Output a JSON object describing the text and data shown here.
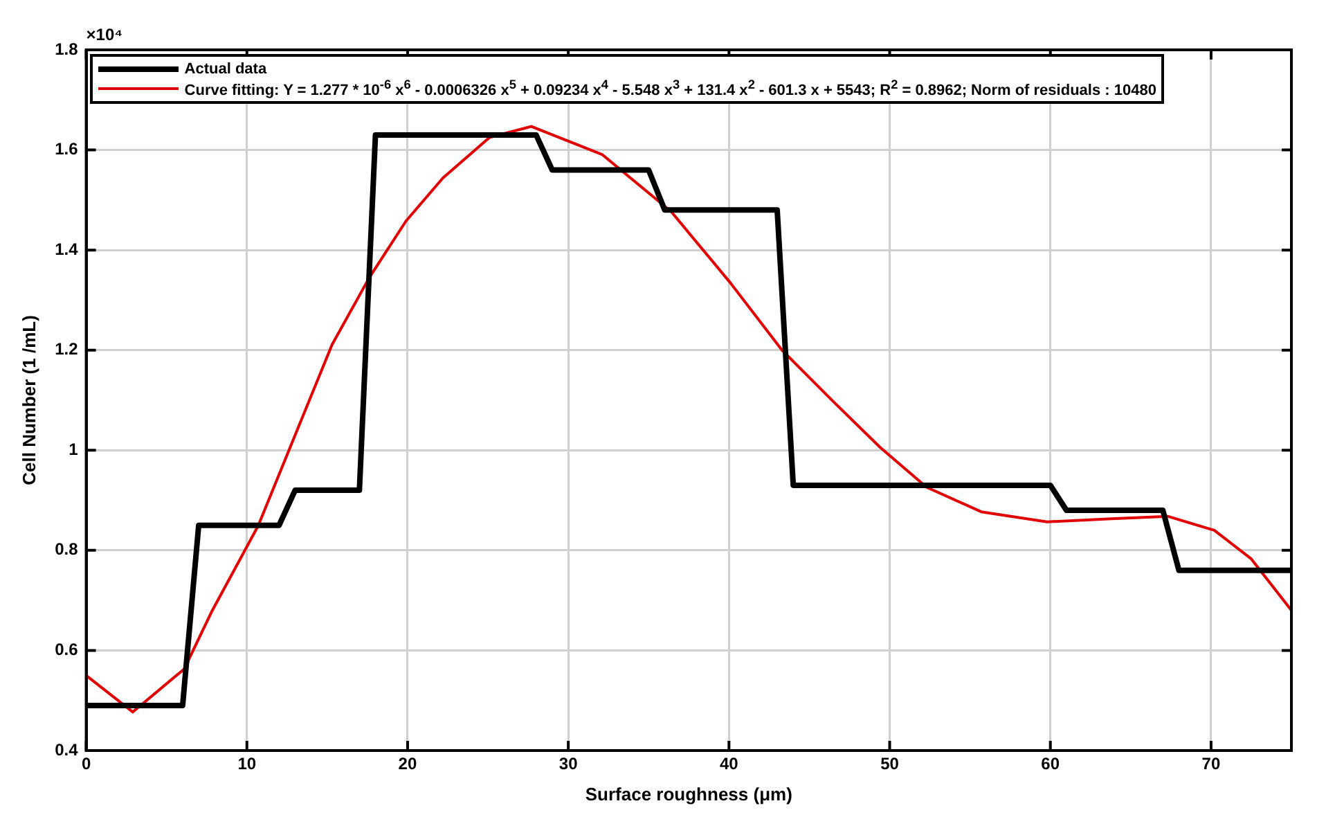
{
  "chart_data": {
    "type": "line",
    "xlabel": "Surface roughness (μm)",
    "ylabel": "Cell Number (1 /mL)",
    "annotations": [
      "×10⁴"
    ],
    "xlim": [
      0,
      75
    ],
    "xticks": [
      0,
      10,
      20,
      30,
      40,
      50,
      60,
      70
    ],
    "ylim": [
      0.4,
      1.8
    ],
    "yticks": [
      0.4,
      0.6,
      0.8,
      1,
      1.2,
      1.4,
      1.6,
      1.8
    ],
    "grid": true,
    "legend": "top",
    "marker": "none",
    "line_style": "solid",
    "series": [
      {
        "name": "Actual data",
        "color": "#000000",
        "x": [
          0,
          6,
          7,
          12,
          13,
          17,
          18,
          28,
          29,
          35,
          36,
          43,
          44,
          60,
          61,
          67,
          68,
          75
        ],
        "values": [
          0.49,
          0.49,
          0.85,
          0.85,
          0.92,
          0.92,
          1.63,
          1.63,
          1.56,
          1.56,
          1.48,
          1.48,
          0.93,
          0.93,
          0.88,
          0.88,
          0.76,
          0.76
        ]
      },
      {
        "name": "Curve fitting: Y = 1.277 * 10$^{-6}$ x$^{6}$ - 0.0006326 x$^{5}$ + 0.09234 x$^{4}$ - 5.548 x$^{3}$ + 131.4 x$^{2}$ - 601.3 x + 5543; R$^{2}$ = 0.8962; Norm of residuals : 10480",
        "color": "#e00000",
        "x": [
          0,
          2.9,
          6.1,
          7.8,
          10.7,
          13,
          15.3,
          17.6,
          19.9,
          22.2,
          25.1,
          27.7,
          32.1,
          36.4,
          40.1,
          43.3,
          46.5,
          49.4,
          52.3,
          55.7,
          59.8,
          63.8,
          67.3,
          70.2,
          72.5,
          75
        ],
        "values": [
          0.55,
          0.477,
          0.563,
          0.677,
          0.849,
          1.03,
          1.211,
          1.344,
          1.458,
          1.544,
          1.625,
          1.647,
          1.591,
          1.477,
          1.334,
          1.2,
          1.097,
          1.006,
          0.926,
          0.877,
          0.857,
          0.863,
          0.868,
          0.84,
          0.783,
          0.68
        ]
      }
    ]
  }
}
